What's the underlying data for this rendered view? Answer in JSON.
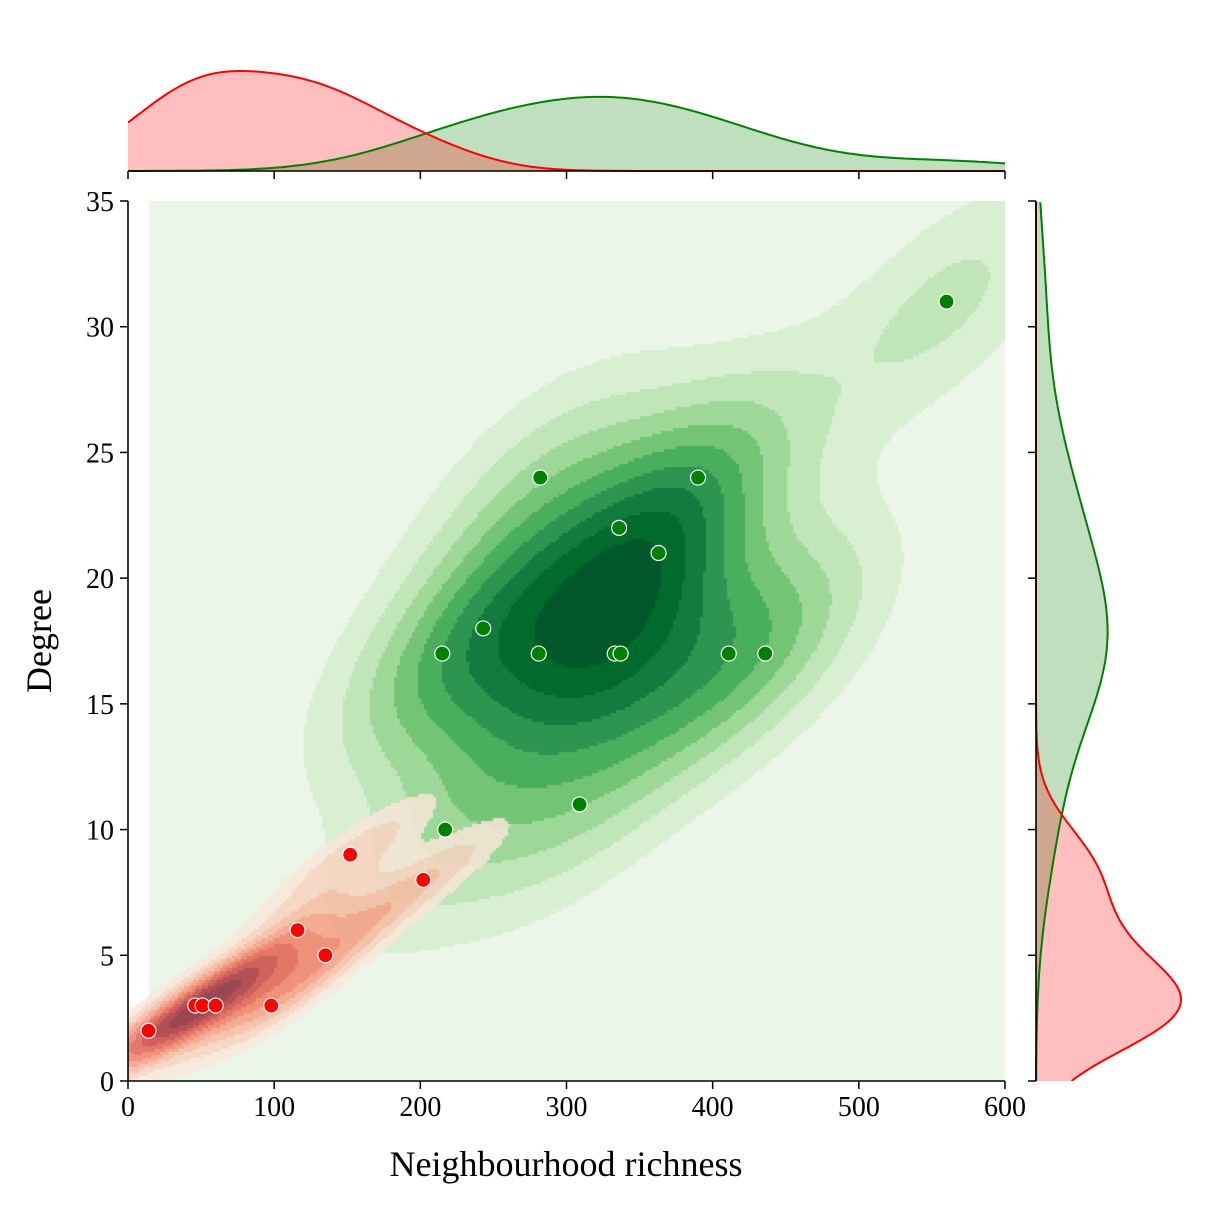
{
  "chart_data": {
    "type": "scatter",
    "variant": "joint plot: bivariate KDE contours with scatter and marginal KDEs",
    "xlabel": "Neighbourhood richness",
    "ylabel": "Degree",
    "xlim": [
      0,
      600
    ],
    "ylim": [
      0,
      35
    ],
    "x_ticks": [
      "0",
      "100",
      "200",
      "300",
      "400",
      "500",
      "600"
    ],
    "y_ticks": [
      "0",
      "5",
      "10",
      "15",
      "20",
      "25",
      "30",
      "35"
    ],
    "grid": false,
    "legend": "none",
    "series": [
      {
        "color": "#008000",
        "kde_palette": "Greens",
        "points": [
          {
            "x": 560,
            "y": 31
          },
          {
            "x": 282,
            "y": 24
          },
          {
            "x": 390,
            "y": 24
          },
          {
            "x": 336,
            "y": 22
          },
          {
            "x": 363,
            "y": 21
          },
          {
            "x": 243,
            "y": 18
          },
          {
            "x": 215,
            "y": 17
          },
          {
            "x": 281,
            "y": 17
          },
          {
            "x": 333,
            "y": 17
          },
          {
            "x": 337,
            "y": 17
          },
          {
            "x": 411,
            "y": 17
          },
          {
            "x": 436,
            "y": 17
          },
          {
            "x": 309,
            "y": 11
          },
          {
            "x": 217,
            "y": 10
          }
        ]
      },
      {
        "color": "#ff0000",
        "kde_palette": "Reds",
        "points": [
          {
            "x": 152,
            "y": 9
          },
          {
            "x": 202,
            "y": 8
          },
          {
            "x": 116,
            "y": 6
          },
          {
            "x": 135,
            "y": 5
          },
          {
            "x": 46,
            "y": 3
          },
          {
            "x": 51,
            "y": 3
          },
          {
            "x": 60,
            "y": 3
          },
          {
            "x": 98,
            "y": 3
          },
          {
            "x": 14,
            "y": 2
          }
        ]
      }
    ]
  }
}
